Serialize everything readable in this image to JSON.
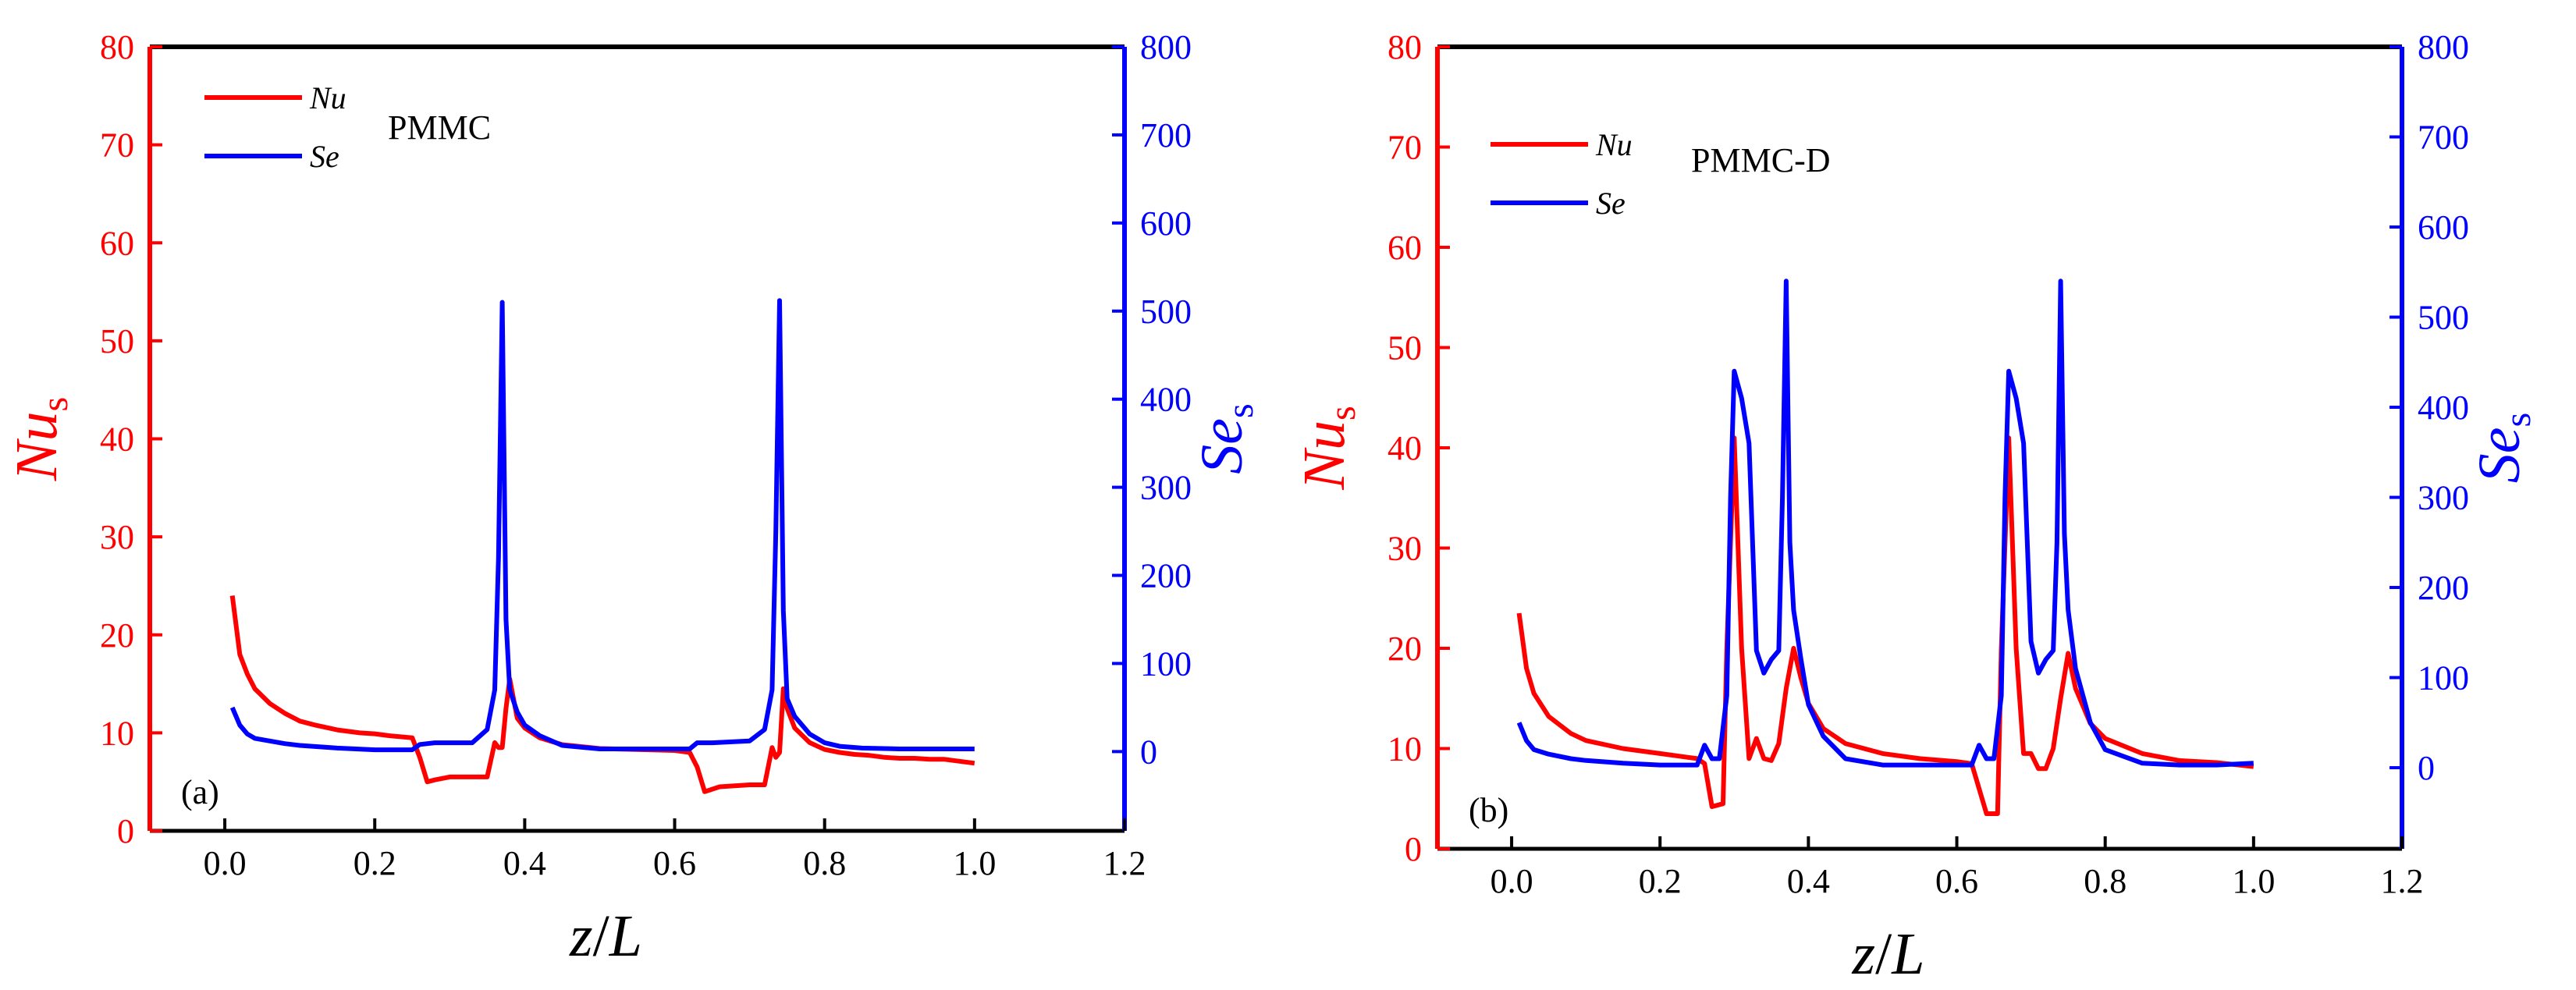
{
  "chart_data": [
    {
      "type": "line",
      "panel_label": "(a)",
      "title": "PMMC",
      "xlabel": {
        "main": "z",
        "sep": "/",
        "sub": "L"
      },
      "ylabel_left": {
        "main": "Nu",
        "sub": "s"
      },
      "ylabel_right": {
        "main": "Se",
        "sub": "s"
      },
      "xlim": [
        -0.1,
        1.2
      ],
      "ylim_left": [
        0,
        80
      ],
      "ylim_right": [
        -90,
        800
      ],
      "x_ticks": [
        "0.0",
        "0.2",
        "0.4",
        "0.6",
        "0.8",
        "1.0",
        "1.2"
      ],
      "y_left_ticks": [
        "0",
        "10",
        "20",
        "30",
        "40",
        "50",
        "60",
        "70",
        "80"
      ],
      "y_right_ticks": [
        "0",
        "100",
        "200",
        "300",
        "400",
        "500",
        "600",
        "700",
        "800"
      ],
      "colors": {
        "left": "#ff0000",
        "right": "#0000ff"
      },
      "legend": [
        {
          "label": "Nu",
          "color": "#ff0000"
        },
        {
          "label": "Se",
          "color": "#0000ff"
        }
      ],
      "series": [
        {
          "name": "Nu",
          "axis": "left",
          "color": "#ff0000",
          "x": [
            0.01,
            0.02,
            0.03,
            0.04,
            0.06,
            0.08,
            0.1,
            0.12,
            0.15,
            0.18,
            0.2,
            0.22,
            0.25,
            0.26,
            0.27,
            0.28,
            0.3,
            0.33,
            0.35,
            0.36,
            0.365,
            0.37,
            0.375,
            0.38,
            0.39,
            0.4,
            0.42,
            0.45,
            0.5,
            0.55,
            0.6,
            0.62,
            0.63,
            0.64,
            0.66,
            0.7,
            0.72,
            0.73,
            0.735,
            0.74,
            0.745,
            0.75,
            0.76,
            0.78,
            0.8,
            0.82,
            0.84,
            0.86,
            0.88,
            0.9,
            0.92,
            0.94,
            0.96,
            0.98,
            1.0
          ],
          "values": [
            24,
            18,
            16,
            14.5,
            13,
            12,
            11.2,
            10.8,
            10.3,
            10,
            9.9,
            9.7,
            9.5,
            7.5,
            5.0,
            5.2,
            5.5,
            5.5,
            5.5,
            9.0,
            8.5,
            8.5,
            12.5,
            15.5,
            11.5,
            10.5,
            9.5,
            8.8,
            8.4,
            8.3,
            8.2,
            8.0,
            6.5,
            4.0,
            4.5,
            4.7,
            4.7,
            8.5,
            7.5,
            8.0,
            14.5,
            12.5,
            10.5,
            9.0,
            8.3,
            8.0,
            7.8,
            7.7,
            7.5,
            7.4,
            7.4,
            7.3,
            7.3,
            7.1,
            6.9
          ]
        },
        {
          "name": "Se",
          "axis": "right",
          "color": "#0000ff",
          "x": [
            0.01,
            0.02,
            0.03,
            0.04,
            0.06,
            0.08,
            0.1,
            0.15,
            0.2,
            0.25,
            0.26,
            0.28,
            0.3,
            0.33,
            0.35,
            0.36,
            0.365,
            0.37,
            0.375,
            0.38,
            0.39,
            0.4,
            0.42,
            0.45,
            0.5,
            0.55,
            0.6,
            0.62,
            0.63,
            0.65,
            0.7,
            0.72,
            0.73,
            0.735,
            0.74,
            0.745,
            0.75,
            0.76,
            0.78,
            0.8,
            0.82,
            0.85,
            0.9,
            0.95,
            1.0
          ],
          "values": [
            50,
            30,
            20,
            15,
            12,
            9,
            7,
            4,
            2,
            2,
            8,
            10,
            10,
            10,
            25,
            70,
            220,
            510,
            150,
            70,
            45,
            30,
            18,
            7,
            3,
            3,
            3,
            3,
            10,
            10,
            12,
            25,
            70,
            250,
            512,
            160,
            60,
            40,
            20,
            10,
            6,
            4,
            3,
            3,
            3
          ]
        }
      ]
    },
    {
      "type": "line",
      "panel_label": "(b)",
      "title": "PMMC-D",
      "xlabel": {
        "main": "z",
        "sep": "/",
        "sub": "L"
      },
      "ylabel_left": {
        "main": "Nu",
        "sub": "s"
      },
      "ylabel_right": {
        "main": "Se",
        "sub": "s"
      },
      "xlim": [
        -0.1,
        1.2
      ],
      "ylim_left": [
        0,
        80
      ],
      "ylim_right": [
        -90,
        800
      ],
      "x_ticks": [
        "0.0",
        "0.2",
        "0.4",
        "0.6",
        "0.8",
        "1.0",
        "1.2"
      ],
      "y_left_ticks": [
        "0",
        "10",
        "20",
        "30",
        "40",
        "50",
        "60",
        "70",
        "80"
      ],
      "y_right_ticks": [
        "0",
        "100",
        "200",
        "300",
        "400",
        "500",
        "600",
        "700",
        "800"
      ],
      "colors": {
        "left": "#ff0000",
        "right": "#0000ff"
      },
      "legend": [
        {
          "label": "Nu",
          "color": "#ff0000"
        },
        {
          "label": "Se",
          "color": "#0000ff"
        }
      ],
      "series": [
        {
          "name": "Nu",
          "axis": "left",
          "color": "#ff0000",
          "x": [
            0.01,
            0.02,
            0.03,
            0.05,
            0.08,
            0.1,
            0.15,
            0.2,
            0.25,
            0.26,
            0.27,
            0.285,
            0.29,
            0.3,
            0.31,
            0.32,
            0.33,
            0.34,
            0.35,
            0.36,
            0.37,
            0.38,
            0.39,
            0.4,
            0.42,
            0.45,
            0.5,
            0.55,
            0.6,
            0.62,
            0.63,
            0.64,
            0.655,
            0.66,
            0.67,
            0.68,
            0.69,
            0.7,
            0.71,
            0.72,
            0.73,
            0.74,
            0.75,
            0.76,
            0.78,
            0.8,
            0.85,
            0.9,
            0.95,
            1.0
          ],
          "values": [
            23.5,
            18,
            15.5,
            13.2,
            11.5,
            10.8,
            10,
            9.5,
            9.0,
            8.5,
            4.2,
            4.5,
            20,
            41,
            20,
            9.0,
            11,
            9.0,
            8.8,
            10.5,
            16,
            20,
            17,
            14.5,
            12,
            10.5,
            9.5,
            9.0,
            8.7,
            8.5,
            6.0,
            3.5,
            3.5,
            20,
            41,
            20,
            9.5,
            9.5,
            8.0,
            8.0,
            10,
            15,
            19.5,
            16,
            12.5,
            11,
            9.5,
            8.8,
            8.6,
            8.2
          ]
        },
        {
          "name": "Se",
          "axis": "right",
          "color": "#0000ff",
          "x": [
            0.01,
            0.02,
            0.03,
            0.05,
            0.08,
            0.1,
            0.15,
            0.2,
            0.25,
            0.26,
            0.27,
            0.28,
            0.29,
            0.295,
            0.3,
            0.31,
            0.32,
            0.33,
            0.34,
            0.35,
            0.36,
            0.365,
            0.37,
            0.375,
            0.38,
            0.39,
            0.4,
            0.42,
            0.45,
            0.5,
            0.55,
            0.6,
            0.62,
            0.63,
            0.64,
            0.65,
            0.66,
            0.665,
            0.67,
            0.68,
            0.69,
            0.7,
            0.71,
            0.72,
            0.73,
            0.735,
            0.74,
            0.745,
            0.75,
            0.76,
            0.78,
            0.8,
            0.85,
            0.9,
            0.95,
            1.0
          ],
          "values": [
            50,
            30,
            20,
            15,
            10,
            8,
            5,
            3,
            3,
            25,
            10,
            10,
            80,
            300,
            440,
            410,
            360,
            130,
            105,
            120,
            130,
            300,
            540,
            250,
            175,
            120,
            70,
            35,
            10,
            3,
            3,
            3,
            3,
            25,
            10,
            10,
            80,
            300,
            440,
            410,
            360,
            140,
            105,
            120,
            130,
            250,
            540,
            260,
            175,
            110,
            50,
            20,
            5,
            3,
            3,
            5
          ]
        }
      ]
    }
  ]
}
